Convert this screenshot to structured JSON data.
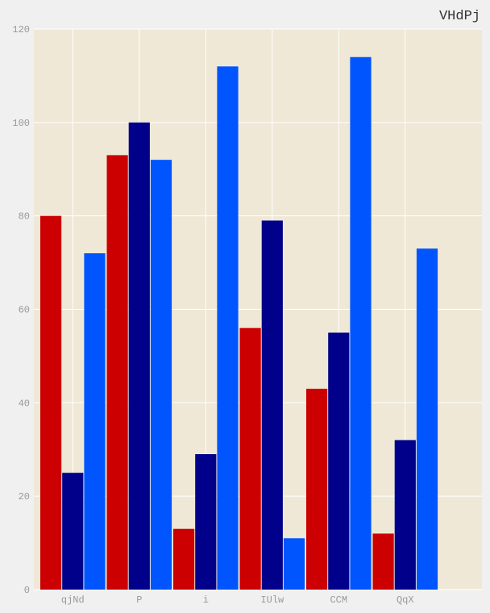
{
  "chart_data": {
    "type": "bar",
    "title": "VHdPj",
    "xlabel": "",
    "ylabel": "",
    "categories": [
      "qjNd",
      "P",
      "i",
      "IUlw",
      "CCM",
      "QqX"
    ],
    "series": [
      {
        "values": [
          80,
          93,
          13,
          56,
          43,
          12
        ],
        "color": "#cc0000"
      },
      {
        "values": [
          25,
          100,
          29,
          79,
          55,
          32
        ],
        "color": "#00008b"
      },
      {
        "values": [
          72,
          92,
          112,
          11,
          114,
          73
        ],
        "color": "#0055ff"
      }
    ],
    "ylim": [
      0,
      120
    ],
    "yticks": [
      0,
      20,
      40,
      60,
      80,
      100,
      120
    ],
    "grid": true,
    "legend": "none",
    "plot_background": "#efe8d6",
    "grid_color": "#ffffff"
  }
}
